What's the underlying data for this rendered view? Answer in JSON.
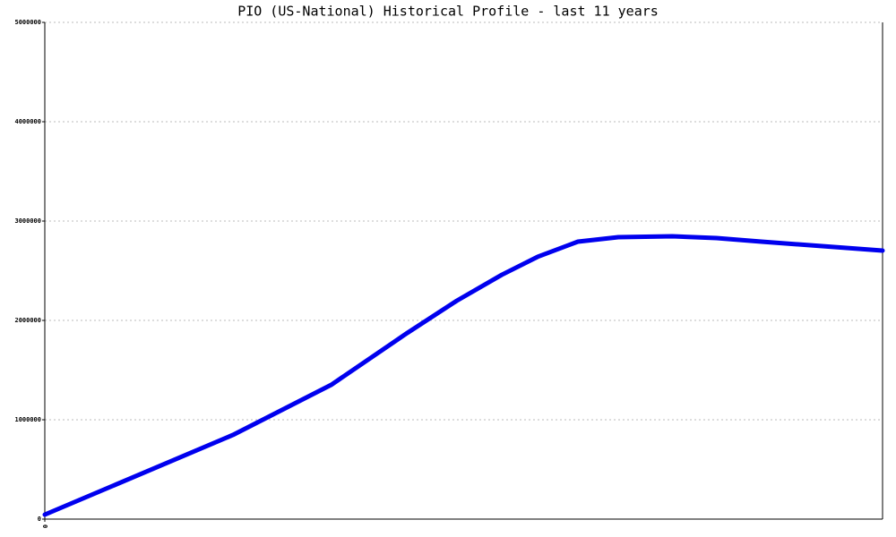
{
  "chart_data": {
    "type": "line",
    "title": "PIO (US-National) Historical Profile - last 11 years",
    "x": [
      0,
      2.47,
      3.76,
      4.76,
      5.41,
      6.0,
      6.47,
      7.0,
      7.53,
      8.24,
      8.82,
      9.41,
      11
    ],
    "series": [
      {
        "color": "#0000ee",
        "values": [
          45000,
          847000,
          1351000,
          1874000,
          2198000,
          2459000,
          2640000,
          2793000,
          2838000,
          2847000,
          2829000,
          2793000,
          2703000
        ]
      }
    ],
    "xlim": [
      0,
      11
    ],
    "xticks": [
      0
    ],
    "ylim": [
      0,
      5000000
    ],
    "yticks": [
      0,
      1000000,
      2000000,
      3000000,
      4000000,
      5000000
    ],
    "grid": true
  }
}
